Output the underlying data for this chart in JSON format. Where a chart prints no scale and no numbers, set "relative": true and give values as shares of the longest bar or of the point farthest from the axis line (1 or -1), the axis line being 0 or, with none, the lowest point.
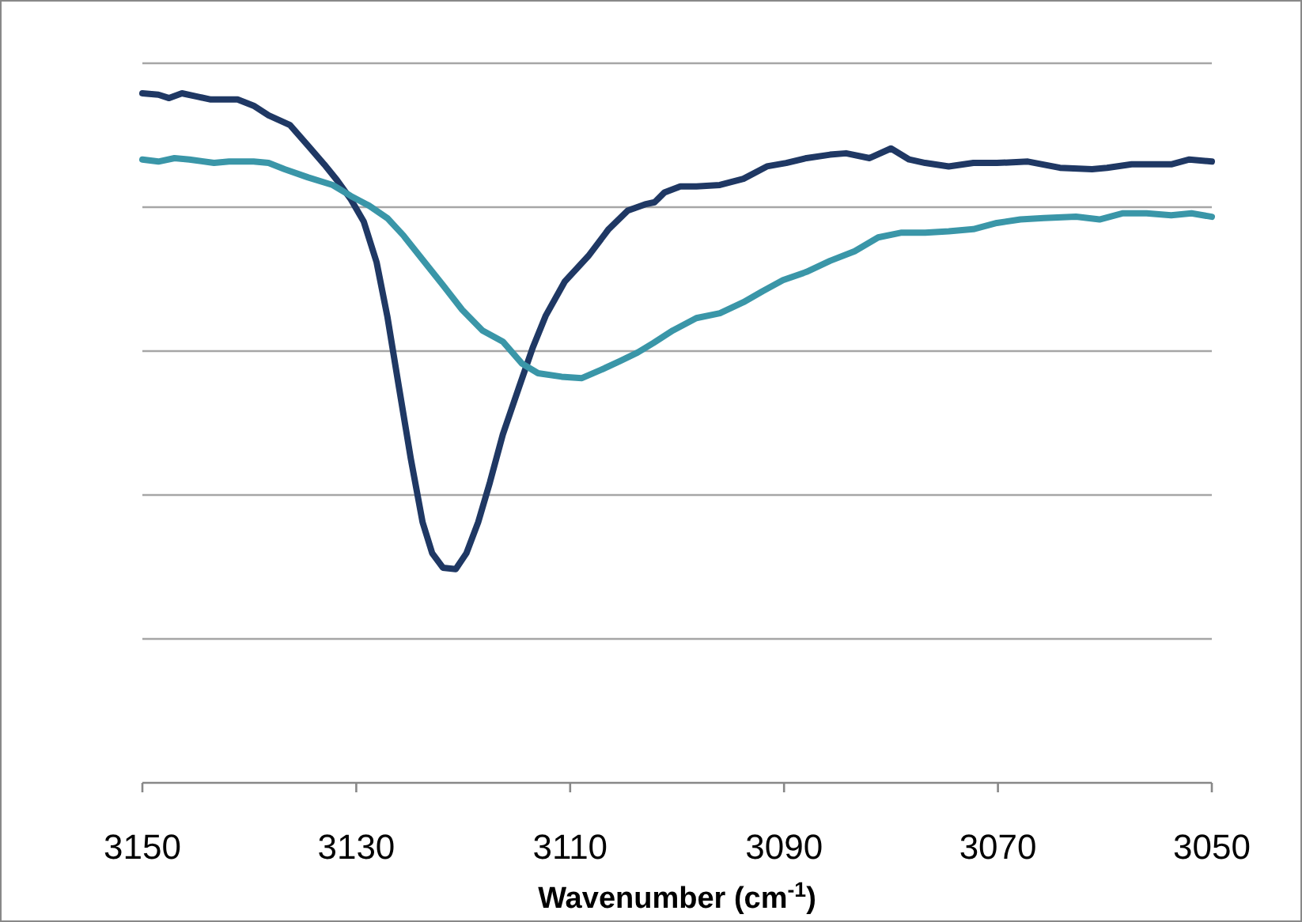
{
  "chart_data": {
    "type": "line",
    "xlabel": "Wavenumber (cm$^{-1}$)",
    "relative": true,
    "grid": true,
    "xlim": [
      3150,
      3050
    ],
    "xticks": [
      3150,
      3130,
      3110,
      3090,
      3070,
      3050
    ],
    "series": [
      {
        "color": "#1f3864",
        "x": [
          3150,
          3148.5,
          3147.5,
          3146.3,
          3144.8,
          3143.6,
          3142.6,
          3141.1,
          3139.6,
          3138.2,
          3136.2,
          3134.5,
          3133.0,
          3131.8,
          3130.5,
          3129.3,
          3128.1,
          3127.1,
          3126.0,
          3124.9,
          3123.8,
          3122.9,
          3121.9,
          3120.7,
          3119.7,
          3118.6,
          3117.5,
          3116.3,
          3114.8,
          3113.5,
          3112.3,
          3110.5,
          3108.3,
          3106.4,
          3104.6,
          3103.0,
          3102.1,
          3101.2,
          3099.7,
          3098.2,
          3096.0,
          3093.8,
          3091.6,
          3089.8,
          3087.9,
          3085.7,
          3084.2,
          3082.0,
          3080.0,
          3078.3,
          3076.8,
          3074.6,
          3072.3,
          3070.1,
          3067.2,
          3064.2,
          3061.2,
          3059.8,
          3057.5,
          3053.8,
          3052.1,
          3050
        ],
        "values": [
          1.0,
          0.998,
          0.993,
          1.0,
          0.995,
          0.991,
          0.991,
          0.991,
          0.982,
          0.968,
          0.954,
          0.924,
          0.897,
          0.874,
          0.846,
          0.814,
          0.755,
          0.677,
          0.573,
          0.47,
          0.378,
          0.333,
          0.312,
          0.31,
          0.333,
          0.378,
          0.436,
          0.505,
          0.573,
          0.631,
          0.677,
          0.727,
          0.764,
          0.803,
          0.83,
          0.839,
          0.842,
          0.856,
          0.865,
          0.865,
          0.867,
          0.876,
          0.894,
          0.899,
          0.906,
          0.911,
          0.913,
          0.906,
          0.92,
          0.904,
          0.899,
          0.894,
          0.899,
          0.899,
          0.901,
          0.892,
          0.89,
          0.892,
          0.897,
          0.897,
          0.904,
          0.901
        ]
      },
      {
        "color": "#3a96a8",
        "x": [
          3150,
          3148.5,
          3147.0,
          3145.6,
          3143.3,
          3141.9,
          3139.6,
          3138.2,
          3136.7,
          3134.5,
          3132.2,
          3130.5,
          3128.8,
          3127.1,
          3125.6,
          3123.7,
          3121.9,
          3120.1,
          3118.2,
          3116.3,
          3114.5,
          3113.0,
          3110.8,
          3108.9,
          3107.1,
          3105.3,
          3103.7,
          3102.2,
          3100.4,
          3098.2,
          3096.0,
          3093.8,
          3092.0,
          3090.1,
          3087.9,
          3085.7,
          3083.4,
          3081.2,
          3079.0,
          3076.8,
          3074.6,
          3072.3,
          3070.1,
          3067.9,
          3065.7,
          3062.7,
          3060.5,
          3058.3,
          3056.1,
          3053.8,
          3051.9,
          3050
        ],
        "values": [
          0.904,
          0.901,
          0.906,
          0.904,
          0.899,
          0.901,
          0.901,
          0.899,
          0.89,
          0.878,
          0.867,
          0.851,
          0.837,
          0.819,
          0.794,
          0.757,
          0.722,
          0.686,
          0.656,
          0.64,
          0.608,
          0.594,
          0.589,
          0.587,
          0.599,
          0.612,
          0.624,
          0.638,
          0.656,
          0.674,
          0.681,
          0.697,
          0.713,
          0.729,
          0.741,
          0.757,
          0.771,
          0.791,
          0.798,
          0.798,
          0.8,
          0.803,
          0.812,
          0.817,
          0.819,
          0.821,
          0.817,
          0.826,
          0.826,
          0.823,
          0.826,
          0.821
        ]
      }
    ]
  }
}
